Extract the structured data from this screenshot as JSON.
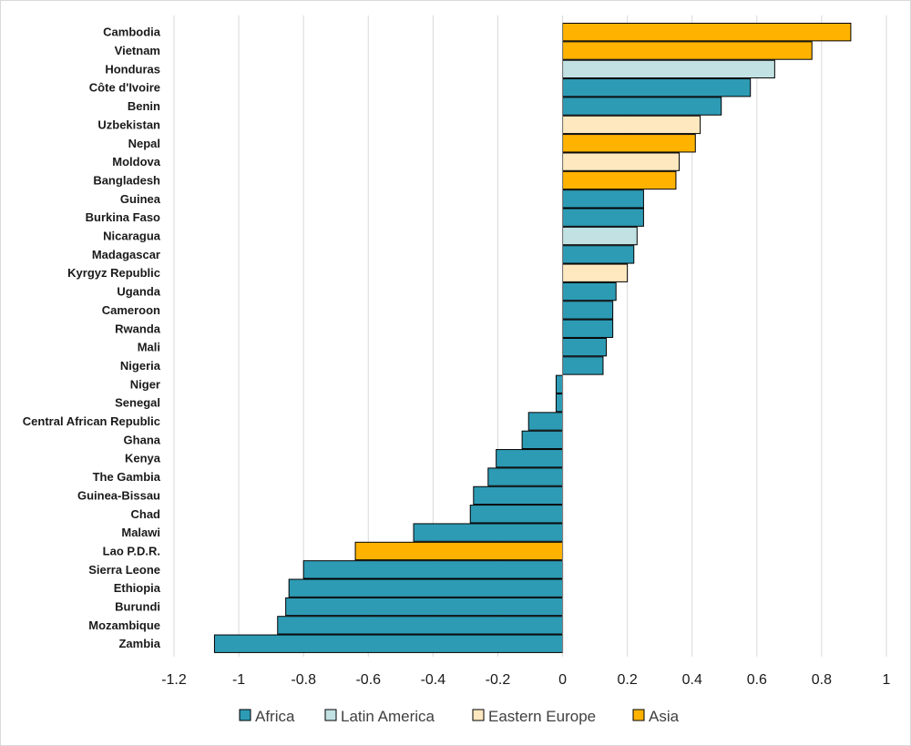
{
  "chart_data": {
    "type": "bar",
    "orientation": "horizontal",
    "title": "",
    "xlabel": "",
    "ylabel": "",
    "xlim": [
      -1.2,
      1.0
    ],
    "x_ticks": [
      -1.2,
      -1.0,
      -0.8,
      -0.6,
      -0.4,
      -0.2,
      0,
      0.2,
      0.4,
      0.6,
      0.8,
      1.0
    ],
    "x_tick_labels": [
      "-1.2",
      "-1",
      "-0.8",
      "-0.6",
      "-0.4",
      "-0.2",
      "0",
      "0.2",
      "0.4",
      "0.6",
      "0.8",
      "1"
    ],
    "grid": "vertical",
    "legend_position": "bottom",
    "groups": [
      {
        "name": "Africa",
        "color": "#2e9bb5"
      },
      {
        "name": "Latin America",
        "color": "#c2e1e3"
      },
      {
        "name": "Eastern Europe",
        "color": "#fde8bf"
      },
      {
        "name": "Asia",
        "color": "#ffb300"
      }
    ],
    "bars": [
      {
        "label": "Cambodia",
        "value": 0.89,
        "group": "Asia"
      },
      {
        "label": "Vietnam",
        "value": 0.77,
        "group": "Asia"
      },
      {
        "label": "Honduras",
        "value": 0.655,
        "group": "Latin America"
      },
      {
        "label": "Côte d'Ivoire",
        "value": 0.58,
        "group": "Africa"
      },
      {
        "label": "Benin",
        "value": 0.49,
        "group": "Africa"
      },
      {
        "label": "Uzbekistan",
        "value": 0.425,
        "group": "Eastern Europe"
      },
      {
        "label": "Nepal",
        "value": 0.41,
        "group": "Asia"
      },
      {
        "label": "Moldova",
        "value": 0.36,
        "group": "Eastern Europe"
      },
      {
        "label": "Bangladesh",
        "value": 0.35,
        "group": "Asia"
      },
      {
        "label": "Guinea",
        "value": 0.25,
        "group": "Africa"
      },
      {
        "label": "Burkina Faso",
        "value": 0.25,
        "group": "Africa"
      },
      {
        "label": "Nicaragua",
        "value": 0.23,
        "group": "Latin America"
      },
      {
        "label": "Madagascar",
        "value": 0.22,
        "group": "Africa"
      },
      {
        "label": "Kyrgyz Republic",
        "value": 0.2,
        "group": "Eastern Europe"
      },
      {
        "label": "Uganda",
        "value": 0.165,
        "group": "Africa"
      },
      {
        "label": "Cameroon",
        "value": 0.155,
        "group": "Africa"
      },
      {
        "label": "Rwanda",
        "value": 0.155,
        "group": "Africa"
      },
      {
        "label": "Mali",
        "value": 0.135,
        "group": "Africa"
      },
      {
        "label": "Nigeria",
        "value": 0.125,
        "group": "Africa"
      },
      {
        "label": "Niger",
        "value": -0.02,
        "group": "Africa"
      },
      {
        "label": "Senegal",
        "value": -0.02,
        "group": "Africa"
      },
      {
        "label": "Central African Republic",
        "value": -0.105,
        "group": "Africa"
      },
      {
        "label": "Ghana",
        "value": -0.125,
        "group": "Africa"
      },
      {
        "label": "Kenya",
        "value": -0.205,
        "group": "Africa"
      },
      {
        "label": "The Gambia",
        "value": -0.23,
        "group": "Africa"
      },
      {
        "label": "Guinea-Bissau",
        "value": -0.275,
        "group": "Africa"
      },
      {
        "label": "Chad",
        "value": -0.285,
        "group": "Africa"
      },
      {
        "label": "Malawi",
        "value": -0.46,
        "group": "Africa"
      },
      {
        "label": "Lao P.D.R.",
        "value": -0.64,
        "group": "Asia"
      },
      {
        "label": "Sierra Leone",
        "value": -0.8,
        "group": "Africa"
      },
      {
        "label": "Ethiopia",
        "value": -0.845,
        "group": "Africa"
      },
      {
        "label": "Burundi",
        "value": -0.855,
        "group": "Africa"
      },
      {
        "label": "Mozambique",
        "value": -0.88,
        "group": "Africa"
      },
      {
        "label": "Zambia",
        "value": -1.075,
        "group": "Africa"
      }
    ]
  }
}
